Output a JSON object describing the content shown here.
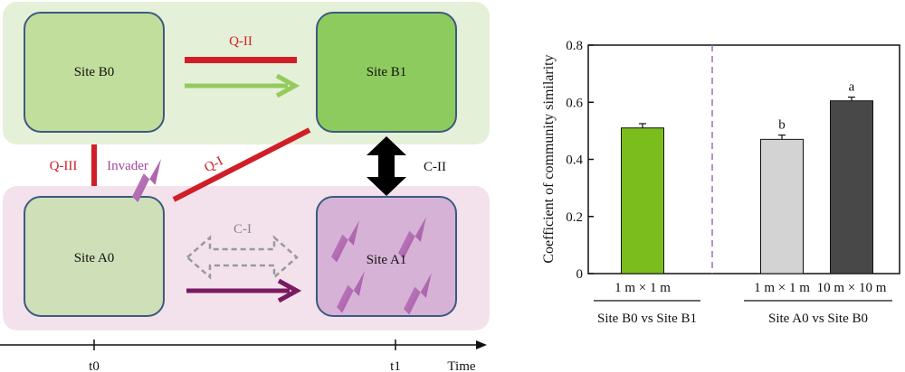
{
  "diagram": {
    "sites": {
      "b0": "Site B0",
      "b1": "Site B1",
      "a0": "Site A0",
      "a1": "Site A1"
    },
    "labels": {
      "q1": "Q-I",
      "q2": "Q-II",
      "q3": "Q-III",
      "c1": "C-I",
      "c2": "C-II",
      "invader": "Invader"
    },
    "timeline": {
      "t0": "t0",
      "t1": "t1",
      "axis_label": "Time"
    },
    "colors": {
      "top_band": "#e5f0d8",
      "bottom_band": "#f3e2ec",
      "site_b0": "#c2de9c",
      "site_b1": "#8dcb5e",
      "site_a0": "#cfdfb8",
      "site_a1": "#d6b3d6",
      "box_border": "#3d5a80",
      "red": "#d01f28",
      "green_arrow": "#93cc5d",
      "purple_arrow": "#7a1a62",
      "invader": "#b06cb0",
      "invader_text": "#a0479c",
      "dashed": "#999999"
    }
  },
  "chart_data": {
    "type": "bar",
    "ylabel": "Coefficient of community similarity",
    "ylim": [
      0,
      0.8
    ],
    "yticks": [
      "0",
      "0.2",
      "0.4",
      "0.6",
      "0.8"
    ],
    "groups": [
      {
        "label": "Site B0 vs Site B1",
        "bars": [
          {
            "category": "1 m × 1 m",
            "value": 0.51,
            "error": 0.015,
            "color": "#7cbd1e",
            "letter": ""
          }
        ]
      },
      {
        "label": "Site A0 vs Site B0",
        "bars": [
          {
            "category": "1 m × 1 m",
            "value": 0.47,
            "error": 0.015,
            "color": "#d3d3d3",
            "letter": "b"
          },
          {
            "category": "10 m × 10 m",
            "value": 0.605,
            "error": 0.013,
            "color": "#484848",
            "letter": "a"
          }
        ]
      }
    ]
  }
}
